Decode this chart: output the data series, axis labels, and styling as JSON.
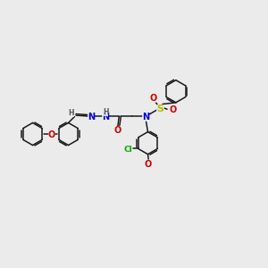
{
  "background_color": "#ebebeb",
  "figsize": [
    3.0,
    3.0
  ],
  "dpi": 100,
  "bond_color": "#1a1a1a",
  "bond_lw": 1.1,
  "dbo": 0.05,
  "ring_r": 0.42,
  "atom_colors": {
    "N": "#0000dd",
    "O": "#cc0000",
    "S": "#bbbb00",
    "Cl": "#00aa00",
    "H": "#555555"
  },
  "xlim": [
    0,
    10
  ],
  "ylim": [
    1.5,
    8.5
  ]
}
